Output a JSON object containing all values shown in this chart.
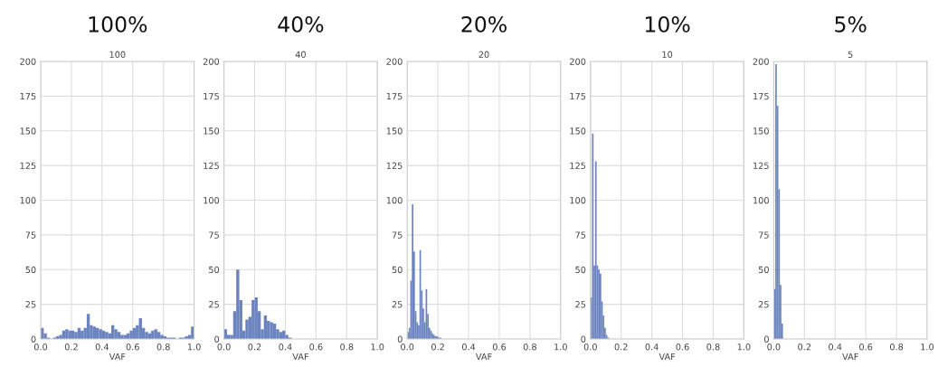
{
  "chart_data": [
    {
      "type": "histogram",
      "title": "100%",
      "subtitle": "100",
      "xlabel": "VAF",
      "color": "#6b83bf",
      "grid": true,
      "bins": [
        0.0,
        0.02,
        0.04,
        0.06,
        0.08,
        0.1,
        0.12,
        0.14,
        0.16,
        0.18,
        0.2,
        0.22,
        0.24,
        0.26,
        0.28,
        0.3,
        0.32,
        0.34,
        0.36,
        0.38,
        0.4,
        0.42,
        0.44,
        0.46,
        0.48,
        0.5,
        0.52,
        0.54,
        0.56,
        0.58,
        0.6,
        0.62,
        0.64,
        0.66,
        0.68,
        0.7,
        0.72,
        0.74,
        0.76,
        0.78,
        0.8,
        0.82,
        0.84,
        0.86,
        0.88,
        0.9,
        0.92,
        0.94,
        0.96,
        0.98,
        1.0
      ],
      "values": [
        8,
        4,
        1,
        0,
        1,
        2,
        3,
        6,
        7,
        6,
        6,
        5,
        8,
        6,
        8,
        18,
        10,
        9,
        8,
        7,
        6,
        5,
        4,
        10,
        7,
        5,
        3,
        3,
        4,
        6,
        8,
        10,
        15,
        8,
        5,
        4,
        6,
        7,
        5,
        3,
        2,
        1,
        1,
        1,
        0,
        1,
        1,
        2,
        3,
        9
      ],
      "xlim": [
        0,
        1
      ],
      "ylim": [
        0,
        200
      ],
      "xticks": [
        {
          "value": 0,
          "label": "0.0"
        },
        {
          "value": 0.2,
          "label": "0.2"
        },
        {
          "value": 0.4,
          "label": "0.4"
        },
        {
          "value": 0.6,
          "label": "0.6"
        },
        {
          "value": 0.8,
          "label": "0.8"
        },
        {
          "value": 1,
          "label": "1.0"
        }
      ],
      "yticks": [
        0,
        25,
        50,
        75,
        100,
        125,
        150,
        175,
        200
      ]
    },
    {
      "type": "histogram",
      "title": "40%",
      "subtitle": "40",
      "xlabel": "VAF",
      "color": "#6b83bf",
      "grid": true,
      "bins": [
        0.0,
        0.02,
        0.04,
        0.06,
        0.08,
        0.1,
        0.12,
        0.14,
        0.16,
        0.18,
        0.2,
        0.22,
        0.24,
        0.26,
        0.28,
        0.3,
        0.32,
        0.34,
        0.36,
        0.38,
        0.4,
        0.42,
        0.44
      ],
      "values": [
        7,
        3,
        3,
        20,
        50,
        28,
        6,
        14,
        16,
        28,
        30,
        20,
        7,
        17,
        13,
        12,
        11,
        7,
        5,
        6,
        3,
        1
      ],
      "xlim": [
        0,
        1
      ],
      "ylim": [
        0,
        200
      ],
      "xticks": [
        {
          "value": 0,
          "label": "0.0"
        },
        {
          "value": 0.2,
          "label": "0.2"
        },
        {
          "value": 0.4,
          "label": "0.4"
        },
        {
          "value": 0.6,
          "label": "0.6"
        },
        {
          "value": 0.8,
          "label": "0.8"
        },
        {
          "value": 1,
          "label": "1.0"
        }
      ],
      "yticks": [
        0,
        25,
        50,
        75,
        100,
        125,
        150,
        175,
        200
      ]
    },
    {
      "type": "histogram",
      "title": "20%",
      "subtitle": "20",
      "xlabel": "VAF",
      "color": "#6b83bf",
      "grid": true,
      "bins": [
        0.0,
        0.01,
        0.02,
        0.03,
        0.04,
        0.05,
        0.06,
        0.07,
        0.08,
        0.09,
        0.1,
        0.11,
        0.12,
        0.13,
        0.14,
        0.15,
        0.16,
        0.17,
        0.18,
        0.19,
        0.2,
        0.21,
        0.22
      ],
      "values": [
        5,
        8,
        42,
        97,
        63,
        20,
        12,
        10,
        64,
        35,
        22,
        12,
        36,
        18,
        8,
        6,
        4,
        3,
        2,
        2,
        1,
        1
      ],
      "xlim": [
        0,
        1
      ],
      "ylim": [
        0,
        200
      ],
      "xticks": [
        {
          "value": 0,
          "label": "0.0"
        },
        {
          "value": 0.2,
          "label": "0.2"
        },
        {
          "value": 0.4,
          "label": "0.4"
        },
        {
          "value": 0.6,
          "label": "0.6"
        },
        {
          "value": 0.8,
          "label": "0.8"
        },
        {
          "value": 1,
          "label": "1.0"
        }
      ],
      "yticks": [
        0,
        25,
        50,
        75,
        100,
        125,
        150,
        175,
        200
      ]
    },
    {
      "type": "histogram",
      "title": "10%",
      "subtitle": "10",
      "xlabel": "VAF",
      "color": "#6b83bf",
      "grid": true,
      "bins": [
        0.0,
        0.01,
        0.02,
        0.03,
        0.04,
        0.05,
        0.06,
        0.07,
        0.08,
        0.09,
        0.1,
        0.11,
        0.12
      ],
      "values": [
        30,
        148,
        53,
        128,
        53,
        50,
        47,
        27,
        17,
        8,
        3,
        1
      ],
      "xlim": [
        0,
        1
      ],
      "ylim": [
        0,
        200
      ],
      "xticks": [
        {
          "value": 0,
          "label": "0.0"
        },
        {
          "value": 0.2,
          "label": "0.2"
        },
        {
          "value": 0.4,
          "label": "0.4"
        },
        {
          "value": 0.6,
          "label": "0.6"
        },
        {
          "value": 0.8,
          "label": "0.8"
        },
        {
          "value": 1,
          "label": "1.0"
        }
      ],
      "yticks": [
        0,
        25,
        50,
        75,
        100,
        125,
        150,
        175,
        200
      ]
    },
    {
      "type": "histogram",
      "title": "5%",
      "subtitle": "5",
      "xlabel": "VAF",
      "color": "#6b83bf",
      "grid": true,
      "bins": [
        0.0,
        0.01,
        0.02,
        0.03,
        0.04,
        0.05,
        0.06
      ],
      "values": [
        36,
        198,
        168,
        108,
        39,
        11
      ],
      "xlim": [
        0,
        1
      ],
      "ylim": [
        0,
        200
      ],
      "xticks": [
        {
          "value": 0,
          "label": "0.0"
        },
        {
          "value": 0.2,
          "label": "0.2"
        },
        {
          "value": 0.4,
          "label": "0.4"
        },
        {
          "value": 0.6,
          "label": "0.6"
        },
        {
          "value": 0.8,
          "label": "0.8"
        },
        {
          "value": 1,
          "label": "1.0"
        }
      ],
      "yticks": [
        0,
        25,
        50,
        75,
        100,
        125,
        150,
        175,
        200
      ]
    }
  ]
}
